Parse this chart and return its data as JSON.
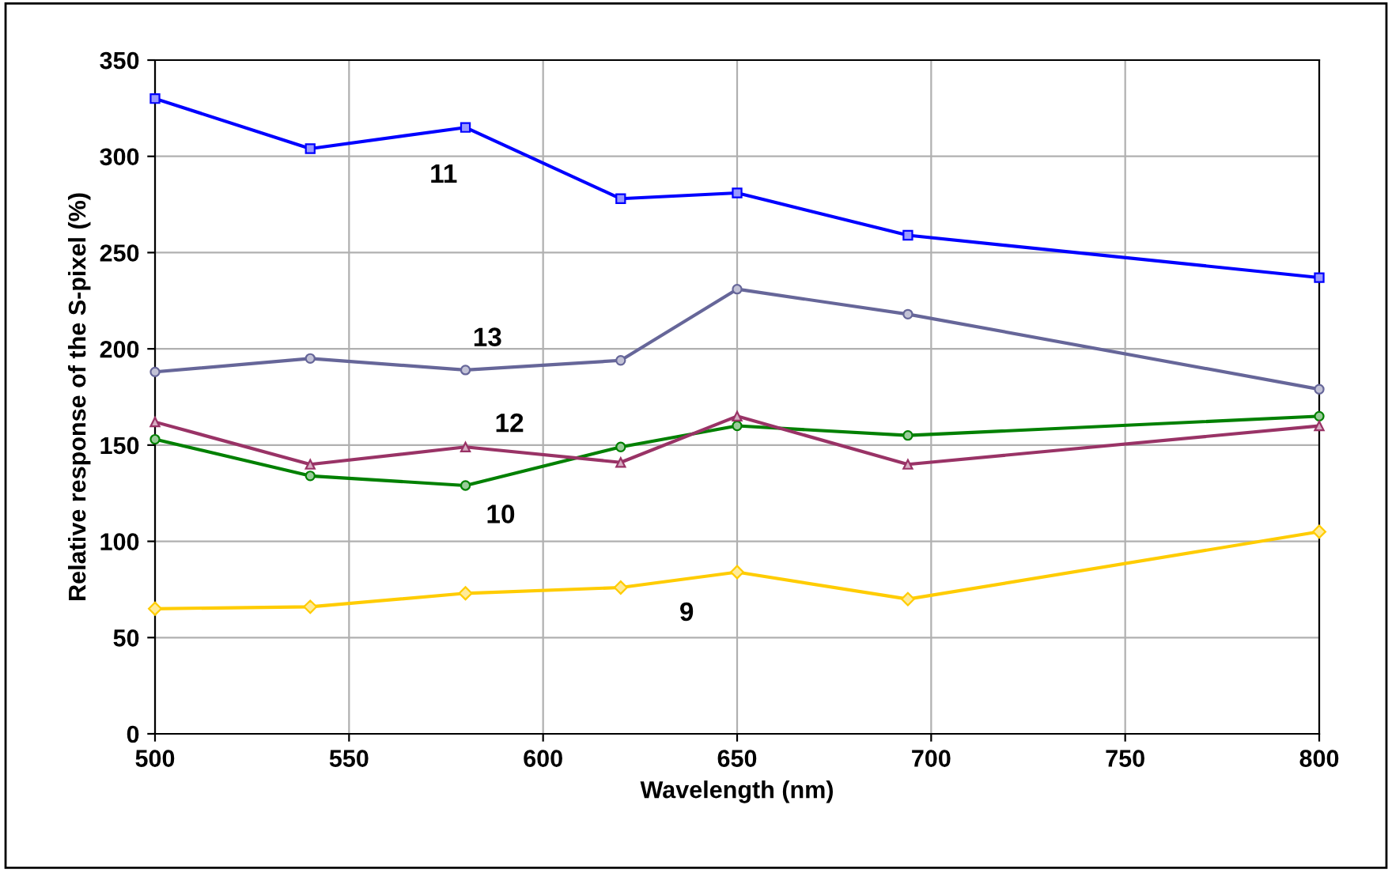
{
  "chart_data": {
    "type": "line",
    "xlabel": "Wavelength (nm)",
    "ylabel": "Relative response of the S-pixel (%)",
    "x": [
      500,
      540,
      580,
      620,
      650,
      694,
      800
    ],
    "series": [
      {
        "name": "11",
        "color": "#0000ff",
        "marker": "square",
        "values": [
          330,
          304,
          315,
          278,
          281,
          259,
          237
        ]
      },
      {
        "name": "13",
        "color": "#666699",
        "marker": "circle",
        "values": [
          188,
          195,
          189,
          194,
          231,
          218,
          179
        ]
      },
      {
        "name": "12",
        "color": "#993366",
        "marker": "triangle",
        "values": [
          162,
          140,
          149,
          141,
          165,
          140,
          160
        ]
      },
      {
        "name": "10",
        "color": "#008000",
        "marker": "circle",
        "values": [
          153,
          134,
          129,
          149,
          160,
          155,
          165
        ]
      },
      {
        "name": "9",
        "color": "#ffcc00",
        "marker": "diamond",
        "values": [
          65,
          66,
          73,
          76,
          84,
          70,
          105
        ]
      }
    ],
    "xlim": [
      500,
      800
    ],
    "xticks": [
      500,
      550,
      600,
      650,
      700,
      750,
      800
    ],
    "ylim": [
      0,
      350
    ],
    "yticks": [
      0,
      50,
      100,
      150,
      200,
      250,
      300,
      350
    ],
    "grid": true,
    "legend": false
  }
}
